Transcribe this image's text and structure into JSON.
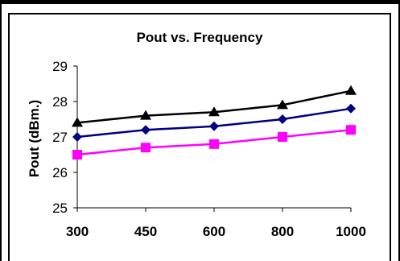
{
  "chart_data": {
    "type": "line",
    "title": "Pout vs. Frequency",
    "xlabel": "",
    "ylabel": "Pout (dBm.)",
    "categories": [
      "300",
      "450",
      "600",
      "800",
      "1000"
    ],
    "ylim": [
      25,
      29
    ],
    "yticks": [
      "25",
      "26",
      "27",
      "28",
      "29"
    ],
    "grid": false,
    "legend": "none",
    "series": [
      {
        "color": "#000000",
        "marker": "triangle",
        "values": [
          27.4,
          27.6,
          27.7,
          27.9,
          28.3
        ]
      },
      {
        "color": "#000080",
        "marker": "diamond",
        "values": [
          27.0,
          27.2,
          27.3,
          27.5,
          27.8
        ]
      },
      {
        "color": "#FF00FF",
        "marker": "square",
        "values": [
          26.5,
          26.7,
          26.8,
          27.0,
          27.2
        ]
      }
    ]
  }
}
